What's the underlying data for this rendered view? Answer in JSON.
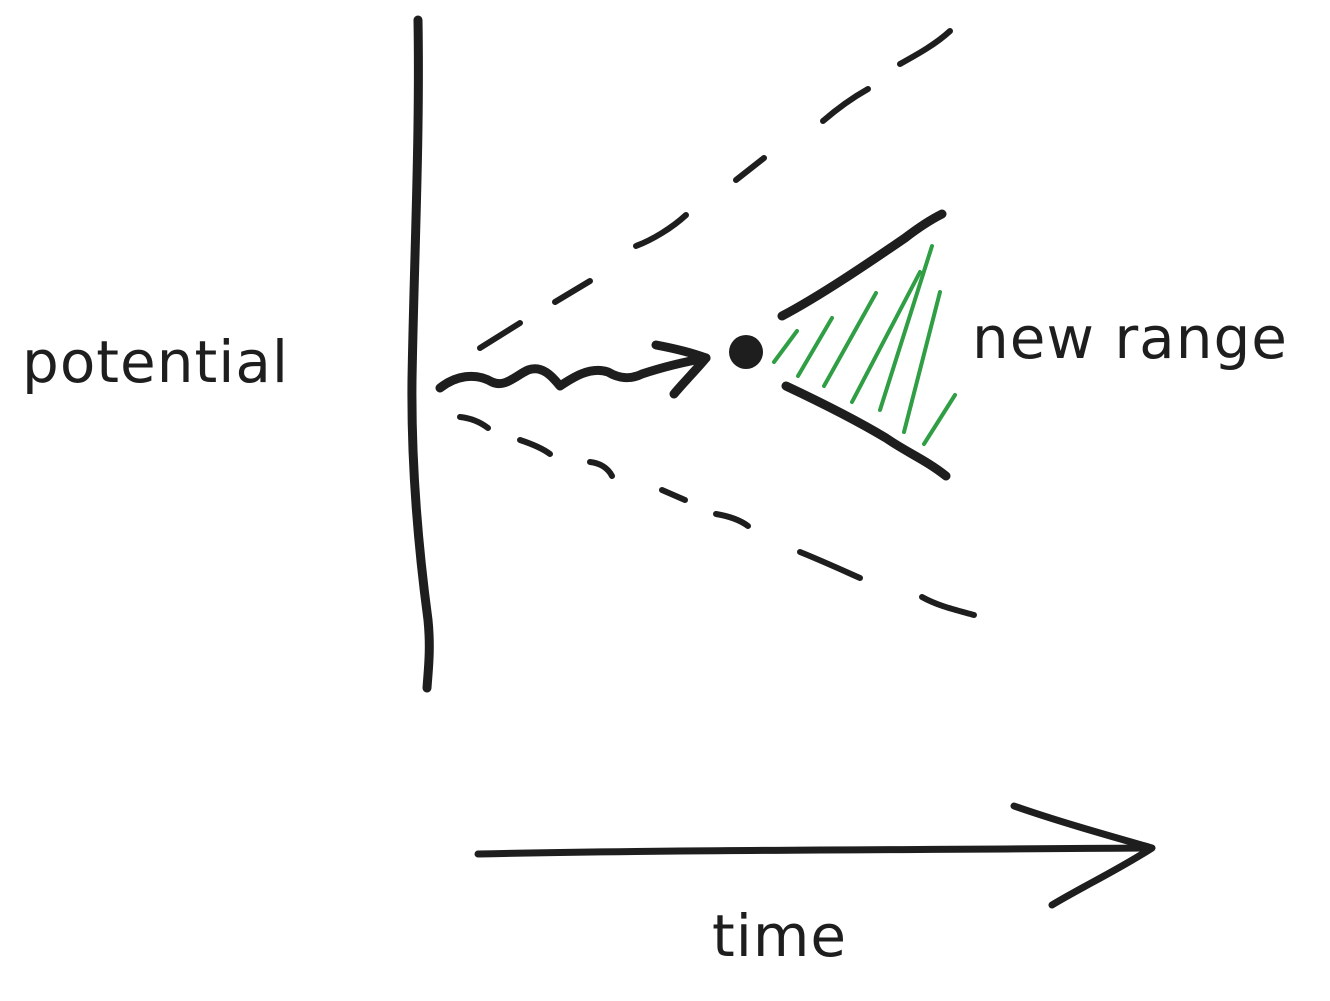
{
  "labels": {
    "y_axis": "potential",
    "x_axis": "time",
    "range": "new range"
  },
  "colors": {
    "ink": "#1e1e1e",
    "hatch": "#2f9e44",
    "background": "#ffffff"
  }
}
